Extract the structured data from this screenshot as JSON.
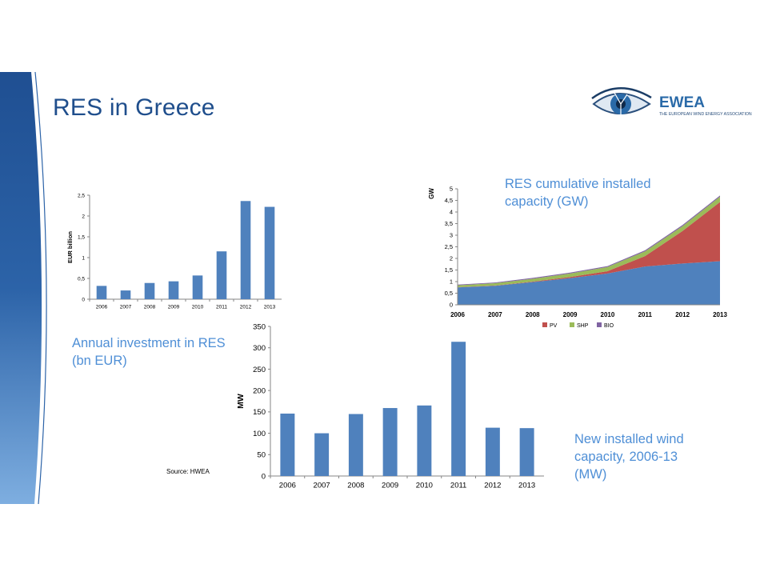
{
  "slide": {
    "title": "RES in Greece",
    "source": "Source: HWEA",
    "logo": {
      "name": "EWEA",
      "tagline": "THE EUROPEAN WIND ENERGY ASSOCIATION"
    },
    "colors": {
      "accent": "#1f4e8c",
      "caption": "#4f8fd6",
      "bar": "#4f81bd"
    }
  },
  "captions": {
    "investment": [
      "Annual investment in RES",
      "(bn EUR)"
    ],
    "capacity": [
      "RES cumulative installed",
      "capacity (GW)"
    ],
    "wind": [
      "New installed wind",
      "capacity, 2006-13",
      "(MW)"
    ]
  },
  "chart_data": [
    {
      "type": "bar",
      "categories": [
        "2006",
        "2007",
        "2008",
        "2009",
        "2010",
        "2011",
        "2012",
        "2013"
      ],
      "values": [
        0.32,
        0.21,
        0.39,
        0.43,
        0.57,
        1.15,
        2.36,
        2.22
      ],
      "ylabel": "EUR billion",
      "ylim": [
        0,
        2.5
      ],
      "yticks": [
        "0",
        "0,5",
        "1",
        "1,5",
        "2",
        "2,5"
      ],
      "grid": false,
      "color": "#4f81bd"
    },
    {
      "type": "area",
      "stacked": true,
      "categories": [
        "2006",
        "2007",
        "2008",
        "2009",
        "2010",
        "2011",
        "2012",
        "2013"
      ],
      "ylabel": "GW",
      "ylim": [
        0,
        5
      ],
      "yticks": [
        "0",
        "0,5",
        "1",
        "1,5",
        "2",
        "2,5",
        "3",
        "3,5",
        "4",
        "4,5",
        "5"
      ],
      "legend_position": "bottom",
      "base": {
        "color": "#4f81bd",
        "values": [
          0.75,
          0.82,
          0.98,
          1.15,
          1.35,
          1.65,
          1.78,
          1.88
        ]
      },
      "series": [
        {
          "name": "PV",
          "color": "#c0504d",
          "values": [
            0.01,
            0.01,
            0.02,
            0.05,
            0.1,
            0.45,
            1.4,
            2.55
          ]
        },
        {
          "name": "SHP",
          "color": "#9bbb59",
          "values": [
            0.08,
            0.1,
            0.12,
            0.15,
            0.18,
            0.2,
            0.21,
            0.23
          ]
        },
        {
          "name": "BIO",
          "color": "#8064a2",
          "values": [
            0.03,
            0.03,
            0.04,
            0.04,
            0.04,
            0.05,
            0.05,
            0.05
          ]
        }
      ],
      "grid": false
    },
    {
      "type": "bar",
      "categories": [
        "2006",
        "2007",
        "2008",
        "2009",
        "2010",
        "2011",
        "2012",
        "2013"
      ],
      "values": [
        146,
        100,
        145,
        159,
        165,
        314,
        113,
        112
      ],
      "ylabel": "MW",
      "ylim": [
        0,
        350
      ],
      "yticks": [
        "0",
        "50",
        "100",
        "150",
        "200",
        "250",
        "300",
        "350"
      ],
      "grid": false,
      "color": "#4f81bd"
    }
  ]
}
